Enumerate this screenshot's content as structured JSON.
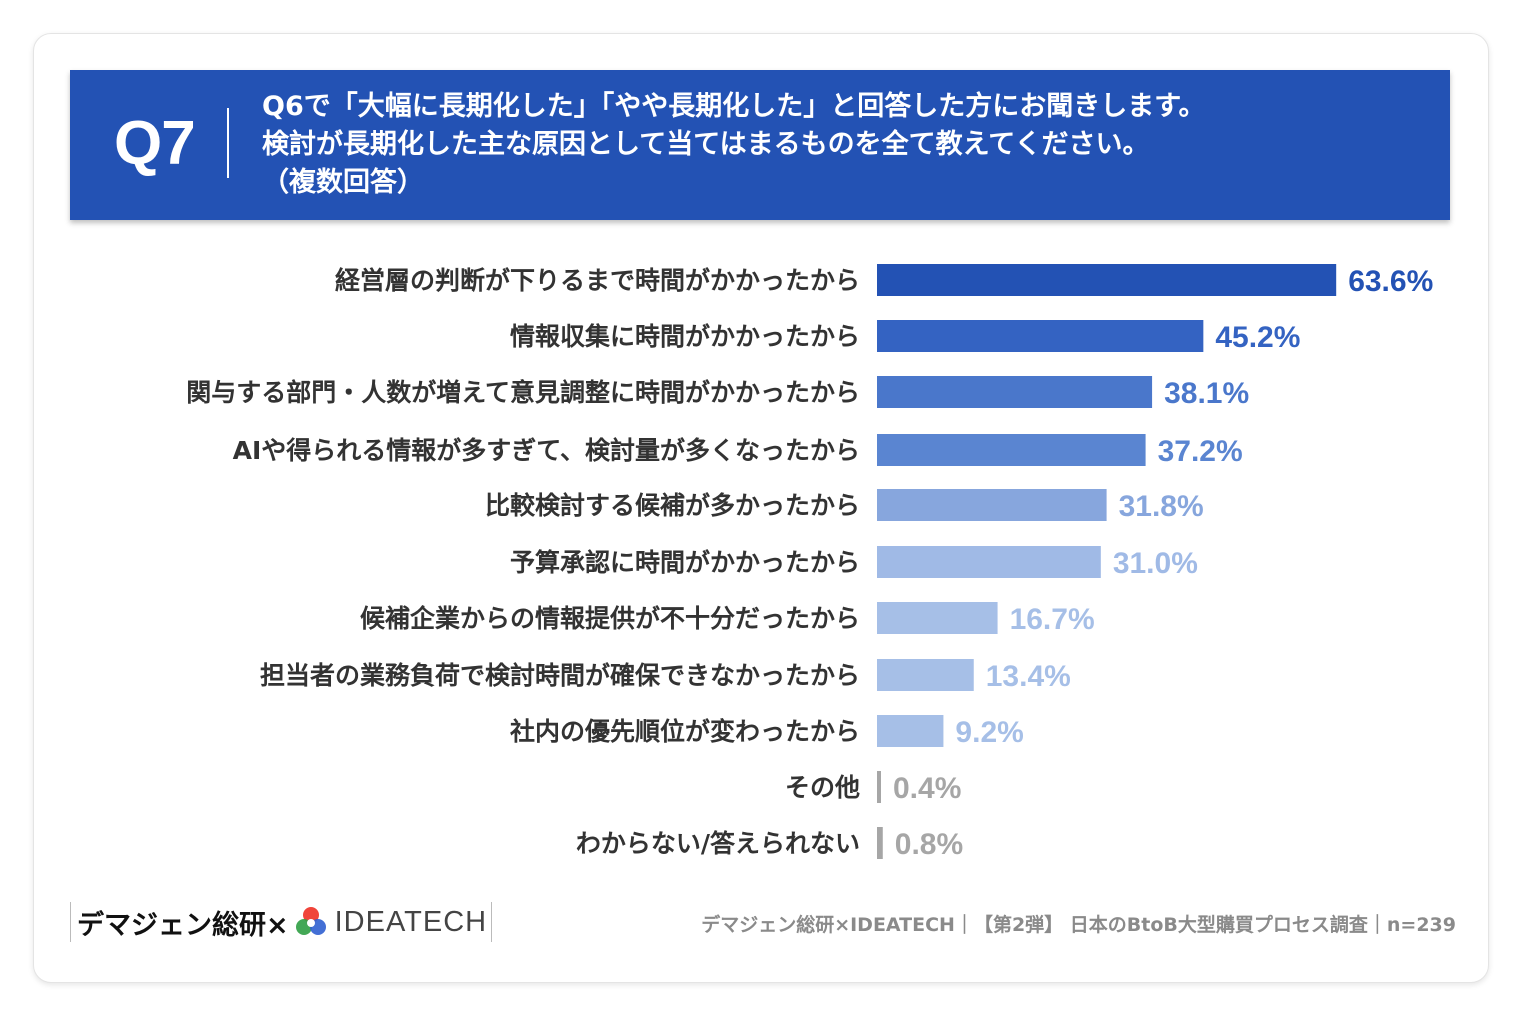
{
  "header": {
    "q_number": "Q7",
    "question_line1": "Q6で「大幅に長期化した」「やや長期化した」と回答した方にお聞きします。",
    "question_line2": "検討が長期化した主な原因として当てはまるものを全て教えてください。",
    "question_line3": "（複数回答）",
    "background": "#2352b4"
  },
  "chart_data": {
    "type": "bar",
    "orientation": "horizontal",
    "categories": [
      "経営層の判断が下りるまで時間がかかったから",
      "情報収集に時間がかかったから",
      "関与する部門・人数が増えて意見調整に時間がかかったから",
      "AIや得られる情報が多すぎて、検討量が多くなったから",
      "比較検討する候補が多かったから",
      "予算承認に時間がかかったから",
      "候補企業からの情報提供が不十分だったから",
      "担当者の業務負荷で検討時間が確保できなかったから",
      "社内の優先順位が変わったから",
      "その他",
      "わからない/答えられない"
    ],
    "values": [
      63.6,
      45.2,
      38.1,
      37.2,
      31.8,
      31.0,
      16.7,
      13.4,
      9.2,
      0.4,
      0.8
    ],
    "value_labels": [
      "63.6%",
      "45.2%",
      "38.1%",
      "37.2%",
      "31.8%",
      "31.0%",
      "16.7%",
      "13.4%",
      "9.2%",
      "0.4%",
      "0.8%"
    ],
    "colors": [
      "#2352b4",
      "#3463c2",
      "#4a77cb",
      "#5a85d1",
      "#87a6dd",
      "#a0bae6",
      "#a6bfe7",
      "#a6bfe7",
      "#a6bfe7",
      "#a6a6a6",
      "#a6a6a6"
    ],
    "label_colors": [
      "#2352b4",
      "#3463c2",
      "#4a77cb",
      "#5a85d1",
      "#87a6dd",
      "#a0bae6",
      "#a6bfe7",
      "#a6bfe7",
      "#a6bfe7",
      "#a6a6a6",
      "#a6a6a6"
    ],
    "category_label_color": "#333333",
    "grid": false,
    "legend": "none"
  },
  "footer": {
    "brand_jp": "デマジェン総研×",
    "brand_en": "IDEATECH",
    "source": "デマジェン総研×IDEATECH｜【第2弾】 日本のBtoB大型購買プロセス調査｜n=239"
  }
}
